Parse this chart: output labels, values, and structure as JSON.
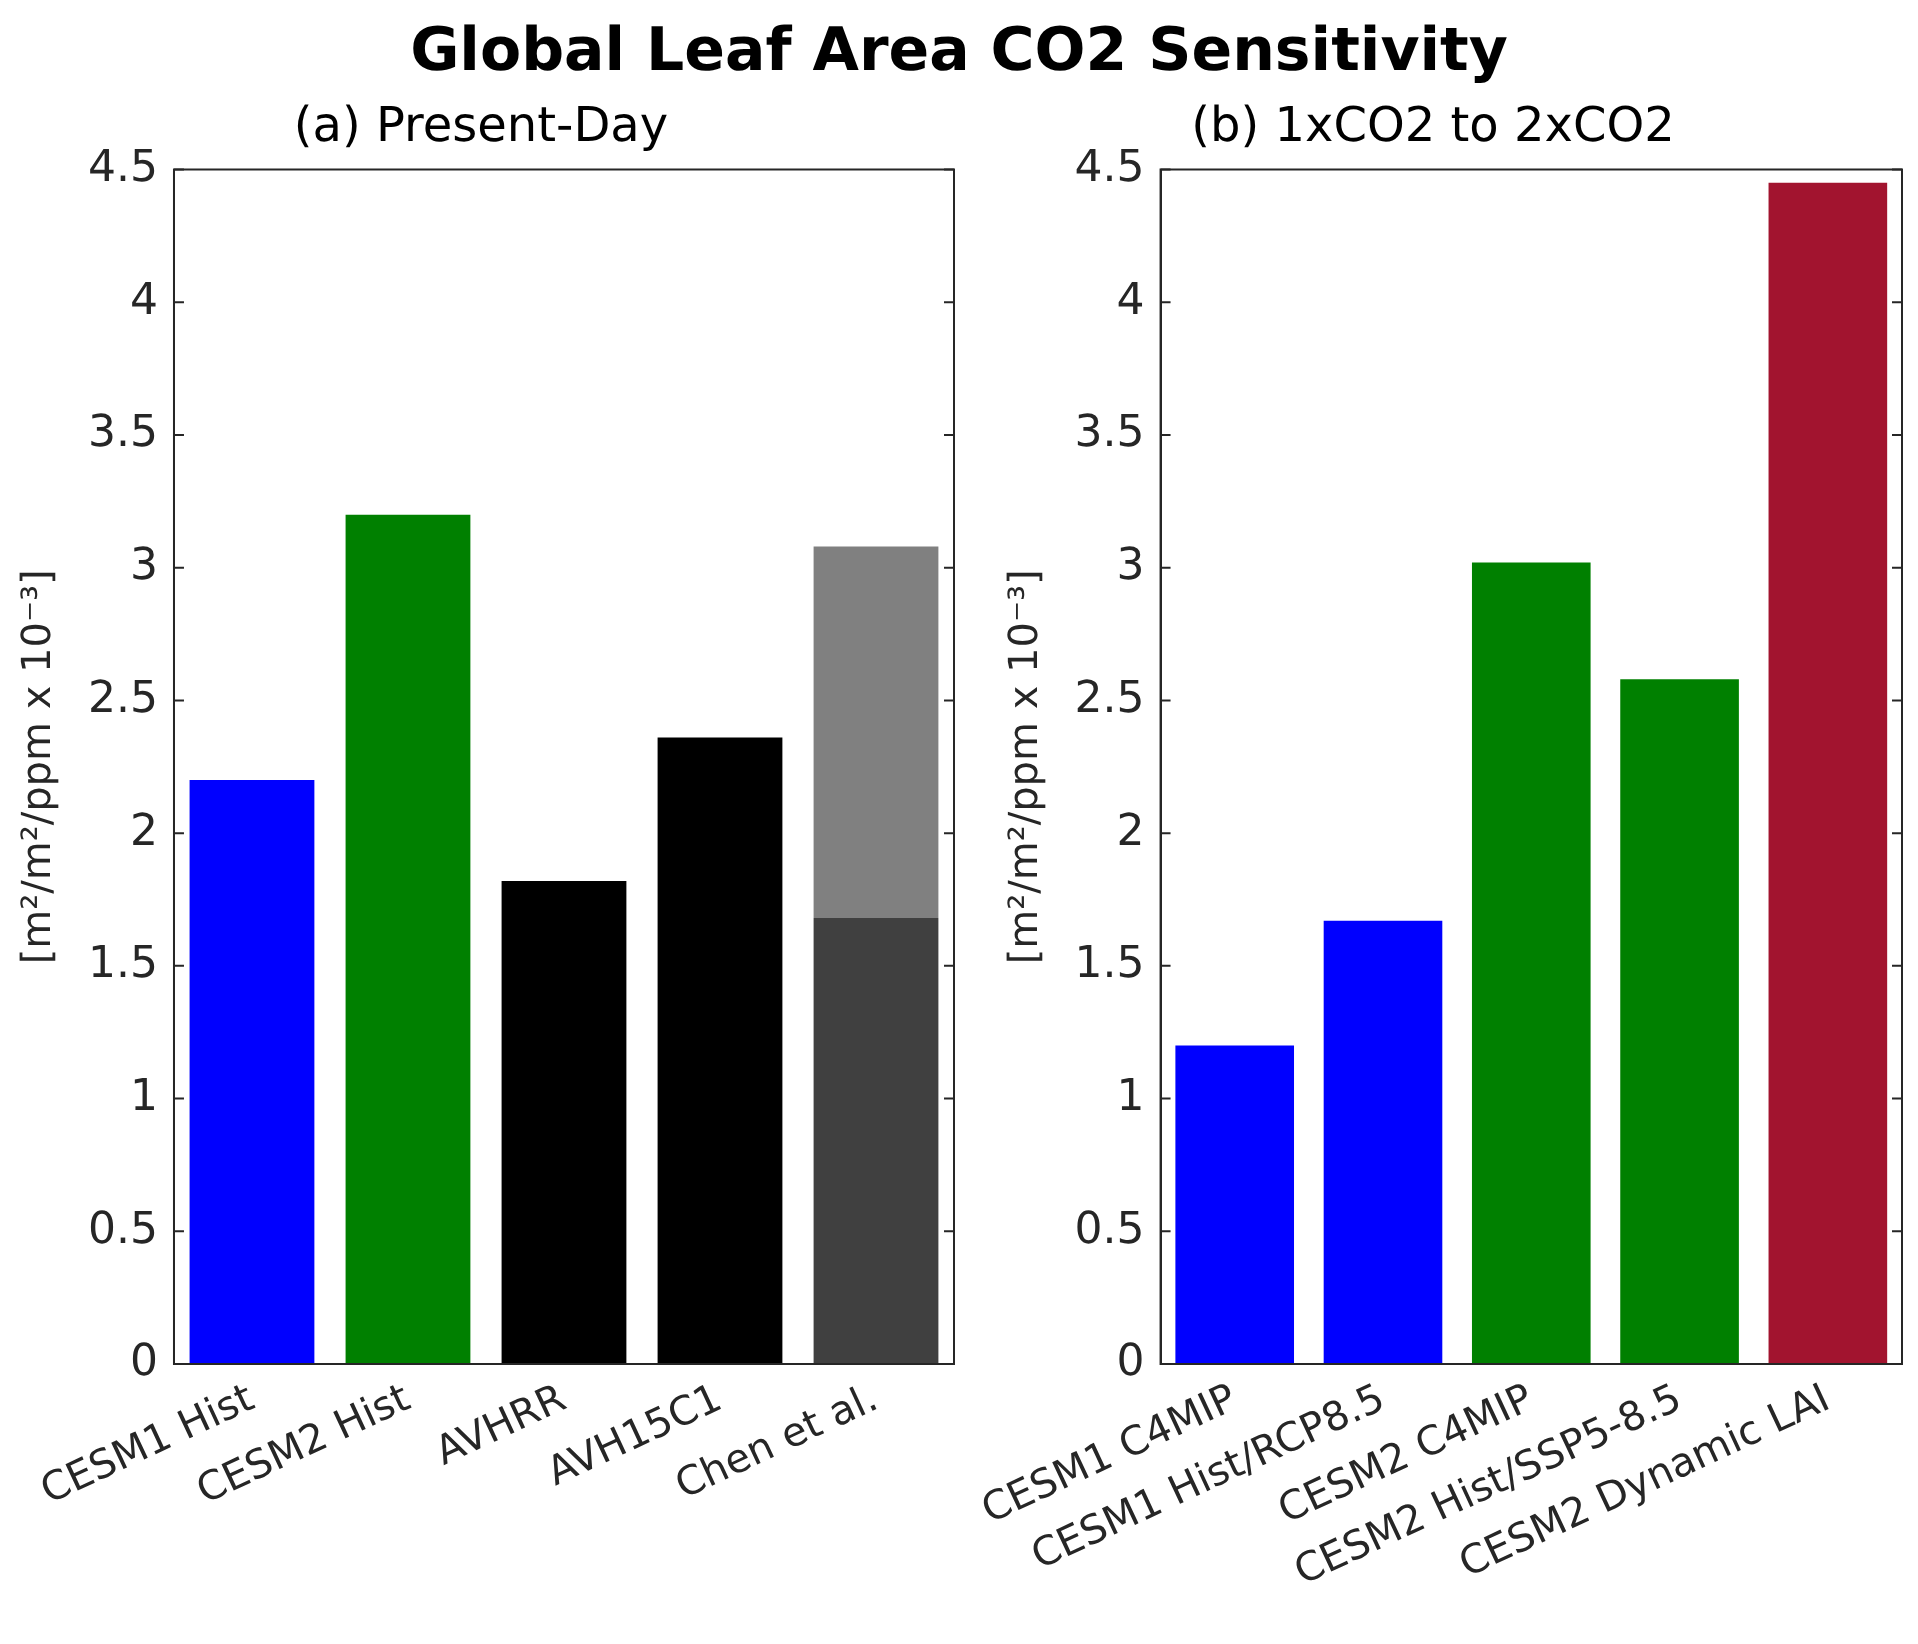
{
  "chart_data": [
    {
      "type": "bar",
      "title": "Global Leaf Area CO2 Sensitivity",
      "subtitle": "(a) Present-Day",
      "ylabel": "[m²/m²/ppm x 10⁻³]",
      "categories": [
        "CESM1 Hist",
        "CESM2 Hist",
        "AVHRR",
        "AVH15C1",
        "Chen et al."
      ],
      "stacked": true,
      "series": [
        {
          "colors": [
            "#0000ff",
            "#008000",
            "#000000",
            "#000000",
            "#404040"
          ],
          "values": [
            2.2,
            3.2,
            1.82,
            2.36,
            1.68
          ]
        },
        {
          "colors": [
            "#808080",
            "#808080",
            "#808080",
            "#808080",
            "#808080"
          ],
          "values": [
            null,
            null,
            null,
            null,
            1.4
          ]
        }
      ],
      "ylim": [
        0,
        4.5
      ],
      "yticks": [
        0,
        0.5,
        1,
        1.5,
        2,
        2.5,
        3,
        3.5,
        4,
        4.5
      ]
    },
    {
      "type": "bar",
      "subtitle": "(b) 1xCO2 to 2xCO2",
      "ylabel": "[m²/m²/ppm x 10⁻³]",
      "categories": [
        "CESM1 C4MIP",
        "CESM1 Hist/RCP8.5",
        "CESM2 C4MIP",
        "CESM2 Hist/SSP5-8.5",
        "CESM2 Dynamic LAI"
      ],
      "series": [
        {
          "colors": [
            "#0000ff",
            "#0000ff",
            "#008000",
            "#008000",
            "#a2142f"
          ],
          "values": [
            1.2,
            1.67,
            3.02,
            2.58,
            4.45
          ]
        }
      ],
      "ylim": [
        0,
        4.5
      ],
      "yticks": [
        0,
        0.5,
        1,
        1.5,
        2,
        2.5,
        3,
        3.5,
        4,
        4.5
      ]
    }
  ]
}
